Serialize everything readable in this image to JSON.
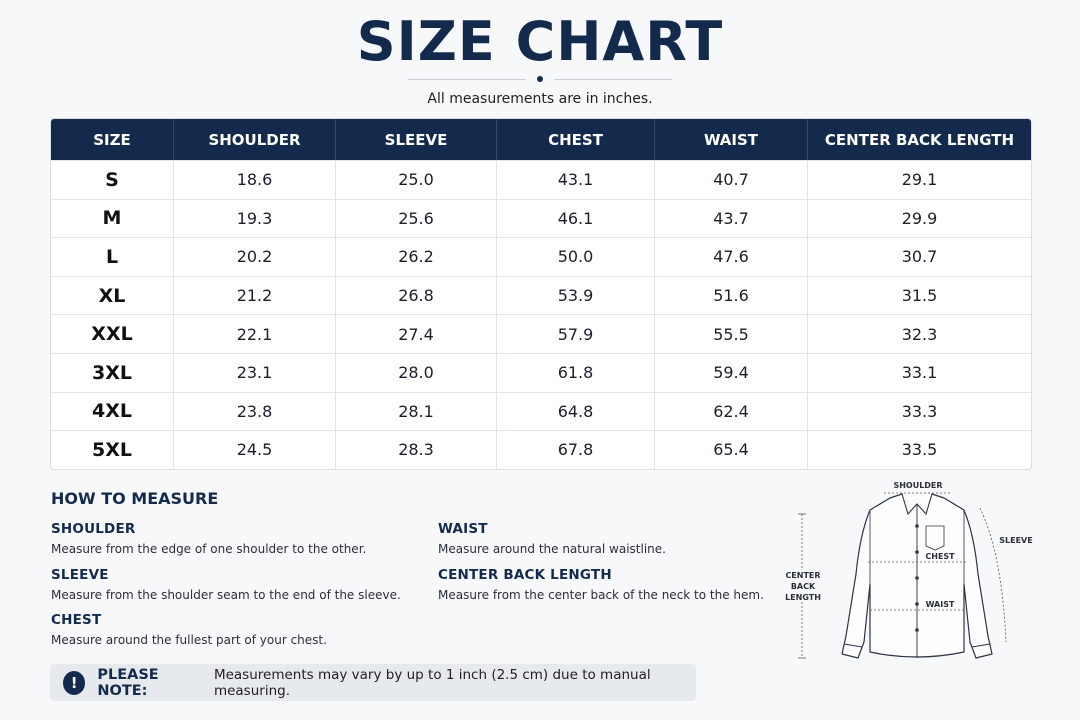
{
  "header": {
    "title": "SIZE CHART",
    "subtitle": "All measurements are in inches."
  },
  "table": {
    "columns": [
      "SIZE",
      "SHOULDER",
      "SLEEVE",
      "CHEST",
      "WAIST",
      "CENTER BACK LENGTH"
    ],
    "rows": [
      [
        "S",
        "18.6",
        "25.0",
        "43.1",
        "40.7",
        "29.1"
      ],
      [
        "M",
        "19.3",
        "25.6",
        "46.1",
        "43.7",
        "29.9"
      ],
      [
        "L",
        "20.2",
        "26.2",
        "50.0",
        "47.6",
        "30.7"
      ],
      [
        "XL",
        "21.2",
        "26.8",
        "53.9",
        "51.6",
        "31.5"
      ],
      [
        "XXL",
        "22.1",
        "27.4",
        "57.9",
        "55.5",
        "32.3"
      ],
      [
        "3XL",
        "23.1",
        "28.0",
        "61.8",
        "59.4",
        "33.1"
      ],
      [
        "4XL",
        "23.8",
        "28.1",
        "64.8",
        "62.4",
        "33.3"
      ],
      [
        "5XL",
        "24.5",
        "28.3",
        "67.8",
        "65.4",
        "33.5"
      ]
    ]
  },
  "how_to_measure": {
    "title": "HOW TO MEASURE",
    "items": [
      {
        "heading": "SHOULDER",
        "text": "Measure from the edge of one shoulder to the other."
      },
      {
        "heading": "SLEEVE",
        "text": "Measure from the shoulder seam to the end of the sleeve."
      },
      {
        "heading": "CHEST",
        "text": "Measure around the fullest part of your chest."
      },
      {
        "heading": "WAIST",
        "text": "Measure around the natural waistline."
      },
      {
        "heading": "CENTER BACK LENGTH",
        "text": "Measure from the center back of the neck to the hem."
      }
    ]
  },
  "diagram": {
    "shoulder": "SHOULDER",
    "sleeve": "SLEEVE",
    "chest": "CHEST",
    "waist": "WAIST",
    "center_back_length": [
      "CENTER",
      "BACK",
      "LENGTH"
    ]
  },
  "note": {
    "icon": "exclamation-icon",
    "label": "PLEASE NOTE:",
    "text": "Measurements may vary by up to 1 inch (2.5 cm) due to manual measuring."
  },
  "colors": {
    "navy": "#142a4d",
    "background": "#f7f8fa",
    "note_background": "#e6e9ee"
  }
}
